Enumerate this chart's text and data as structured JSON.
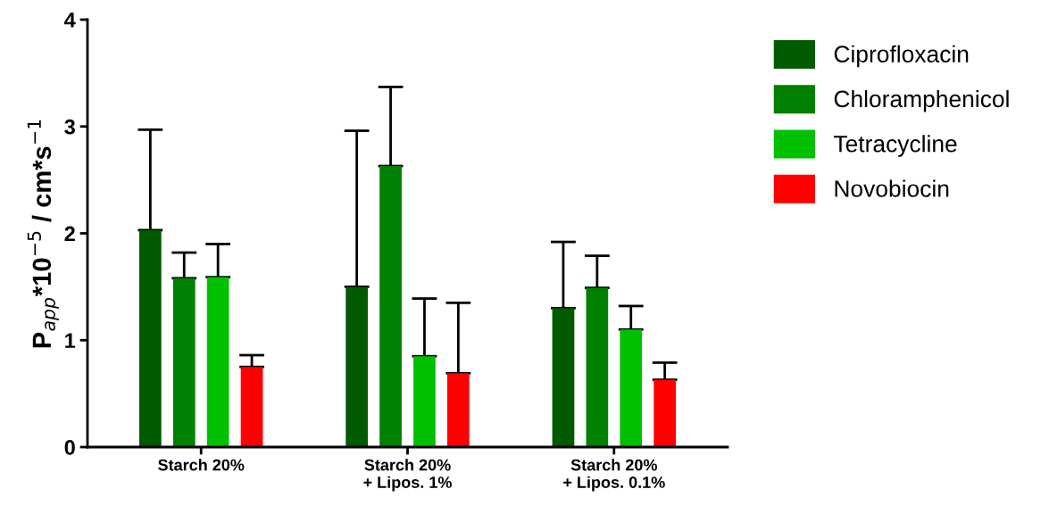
{
  "chart_data": {
    "type": "bar",
    "ylabel": "P$_{app}$*10$^{−5}$ / cm*s$^{−1}$",
    "categories": [
      "Starch 20%",
      "Starch 20%\n+ Lipos. 1%",
      "Starch 20%\n+ Lipos. 0.1%"
    ],
    "series": [
      {
        "name": "Ciprofloxacin",
        "color": "#005a00",
        "values": [
          2.03,
          1.5,
          1.3
        ],
        "errors": [
          [
            2.03,
            2.97
          ],
          [
            1.5,
            2.96
          ],
          [
            1.3,
            1.92
          ]
        ]
      },
      {
        "name": "Chloramphenicol",
        "color": "#008000",
        "values": [
          1.58,
          2.63,
          1.49
        ],
        "errors": [
          [
            1.58,
            1.82
          ],
          [
            2.63,
            3.37
          ],
          [
            1.49,
            1.79
          ]
        ]
      },
      {
        "name": "Tetracycline",
        "color": "#00c000",
        "values": [
          1.59,
          0.85,
          1.1
        ],
        "errors": [
          [
            1.59,
            1.9
          ],
          [
            0.85,
            1.39
          ],
          [
            1.1,
            1.32
          ]
        ]
      },
      {
        "name": "Novobiocin",
        "color": "#ff0000",
        "values": [
          0.75,
          0.69,
          0.63
        ],
        "errors": [
          [
            0.75,
            0.86
          ],
          [
            0.69,
            1.35
          ],
          [
            0.63,
            0.79
          ]
        ]
      }
    ],
    "ylim": [
      0,
      4
    ],
    "yticks": [
      0,
      1,
      2,
      3,
      4
    ],
    "grid": false,
    "legend": "right"
  }
}
